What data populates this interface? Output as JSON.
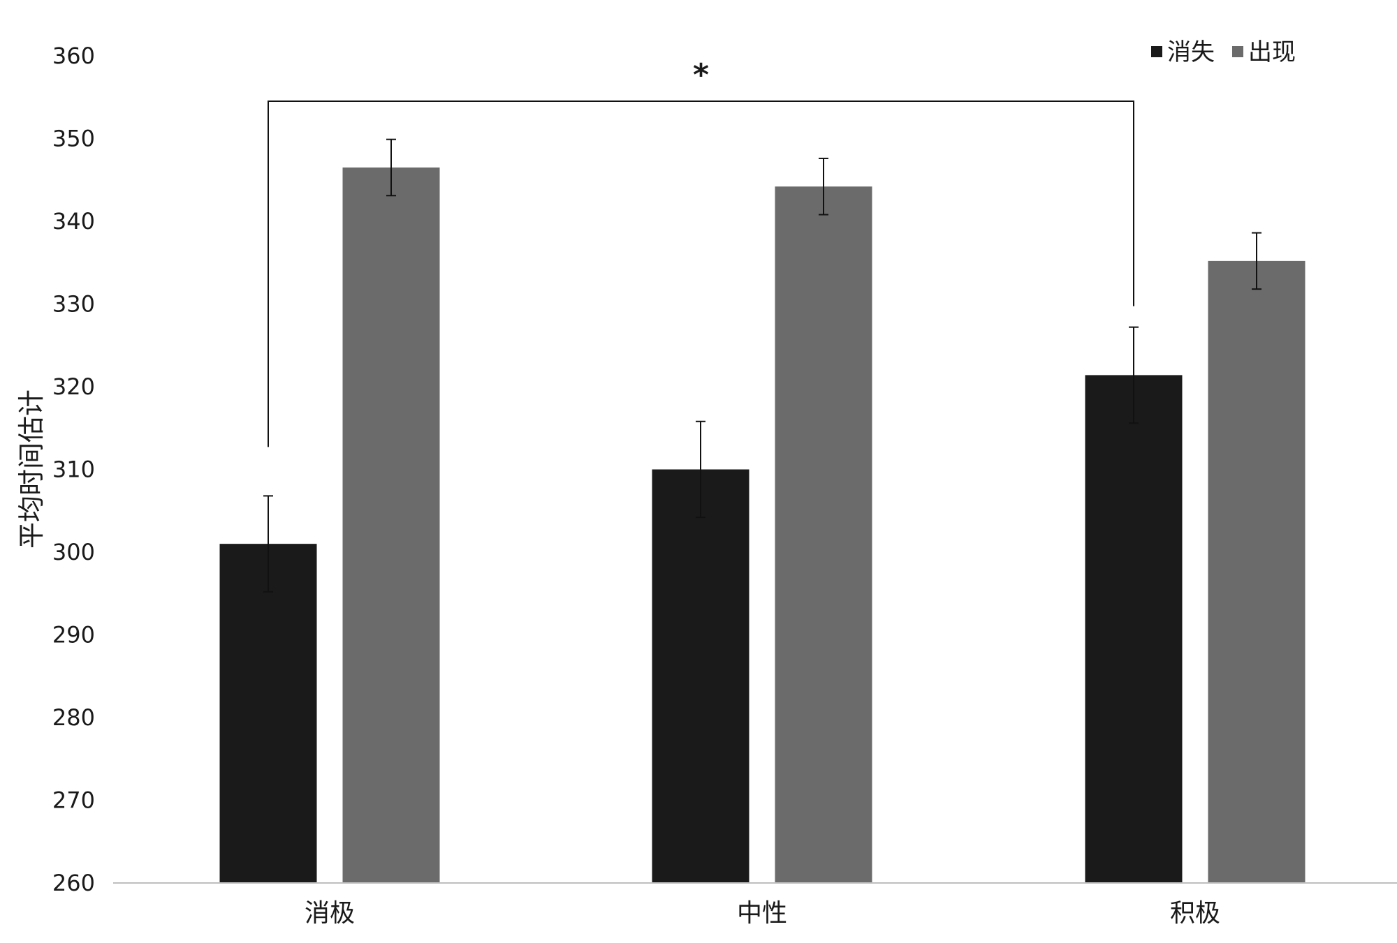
{
  "chart_data": {
    "type": "bar",
    "title": "",
    "xlabel": "",
    "ylabel": "平均时间估计",
    "ylim": [
      260,
      360
    ],
    "yticks": [
      260,
      270,
      280,
      290,
      300,
      310,
      320,
      330,
      340,
      350,
      360
    ],
    "categories": [
      "消极",
      "中性",
      "积极"
    ],
    "series": [
      {
        "name": "消失",
        "color": "#1a1a1a",
        "values": [
          301,
          310,
          321.4
        ],
        "errors": [
          5.8,
          5.8,
          5.8
        ]
      },
      {
        "name": "出现",
        "color": "#6b6b6b",
        "values": [
          346.5,
          344.2,
          335.2
        ],
        "errors": [
          3.4,
          3.4,
          3.4
        ]
      }
    ],
    "legend_position": "top-right",
    "grid": false,
    "annotations": [
      {
        "type": "significance",
        "label": "*",
        "from": {
          "category": "消极",
          "series": "消失"
        },
        "to": {
          "category": "积极",
          "series": "消失"
        }
      }
    ]
  }
}
